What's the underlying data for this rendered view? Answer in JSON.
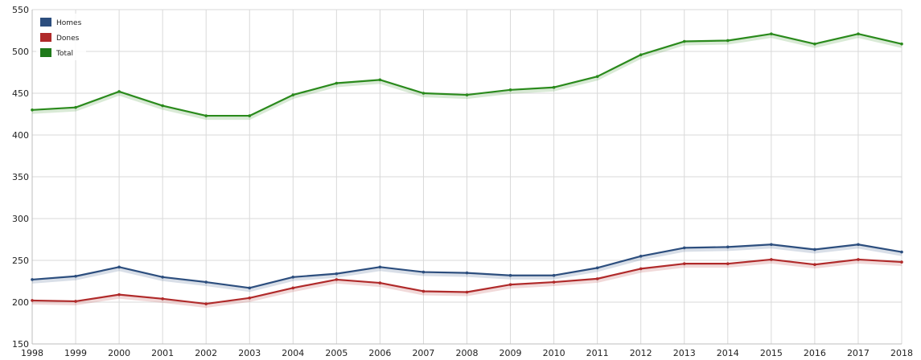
{
  "chart_data": {
    "type": "line",
    "x": [
      "1998",
      "1999",
      "2000",
      "2001",
      "2002",
      "2003",
      "2004",
      "2005",
      "2006",
      "2007",
      "2008",
      "2009",
      "2010",
      "2011",
      "2012",
      "2013",
      "2014",
      "2015",
      "2016",
      "2017",
      "2018"
    ],
    "ylim": [
      150,
      550
    ],
    "yticks": [
      150,
      200,
      250,
      300,
      350,
      400,
      450,
      500,
      550
    ],
    "grid": true,
    "legend": "top-left",
    "series": [
      {
        "name": "Homes",
        "color": "#2c4e7e",
        "values": [
          227,
          231,
          242,
          230,
          224,
          217,
          230,
          234,
          242,
          236,
          235,
          232,
          232,
          241,
          255,
          265,
          266,
          269,
          263,
          269,
          260
        ]
      },
      {
        "name": "Dones",
        "color": "#b02a2a",
        "values": [
          202,
          201,
          209,
          204,
          198,
          205,
          217,
          227,
          223,
          213,
          212,
          221,
          224,
          228,
          240,
          246,
          246,
          251,
          245,
          251,
          248
        ]
      },
      {
        "name": "Total",
        "color": "#2a8a1c",
        "values": [
          430,
          433,
          452,
          435,
          423,
          423,
          448,
          462,
          466,
          450,
          448,
          454,
          457,
          470,
          496,
          512,
          513,
          521,
          509,
          521,
          509
        ]
      }
    ]
  }
}
